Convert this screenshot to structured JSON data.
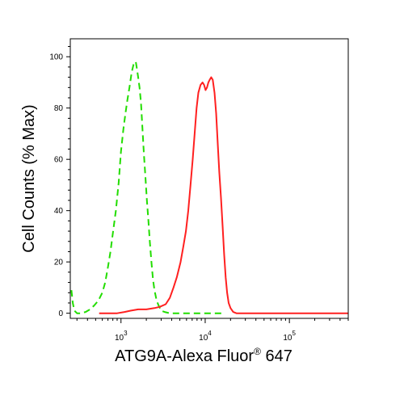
{
  "chart_data": {
    "type": "line",
    "title": "",
    "xlabel_main": "ATG9A-Alexa Fluor",
    "xlabel_sup": "®",
    "xlabel_tail": " 647",
    "ylabel": "Cell Counts (% Max)",
    "x_scale": "log",
    "xlim": [
      250,
      500000
    ],
    "ylim": [
      -2,
      107
    ],
    "x_ticks": [
      {
        "value": 1000,
        "base": "10",
        "exp": "3"
      },
      {
        "value": 10000,
        "base": "10",
        "exp": "4"
      },
      {
        "value": 100000,
        "base": "10",
        "exp": "5"
      }
    ],
    "y_ticks": [
      0,
      20,
      40,
      60,
      80,
      100
    ],
    "grid": false,
    "legend": "none",
    "series": [
      {
        "color": "#22dd00",
        "style": "dashed",
        "points": [
          [
            258,
            9
          ],
          [
            268,
            4
          ],
          [
            280,
            1
          ],
          [
            300,
            0
          ],
          [
            330,
            0
          ],
          [
            380,
            0.5
          ],
          [
            430,
            1.5
          ],
          [
            480,
            3
          ],
          [
            540,
            5
          ],
          [
            600,
            8
          ],
          [
            650,
            12
          ],
          [
            700,
            18
          ],
          [
            750,
            24
          ],
          [
            800,
            31
          ],
          [
            870,
            40
          ],
          [
            940,
            51
          ],
          [
            1000,
            63
          ],
          [
            1070,
            72
          ],
          [
            1130,
            78
          ],
          [
            1190,
            83
          ],
          [
            1260,
            88
          ],
          [
            1340,
            94
          ],
          [
            1410,
            97
          ],
          [
            1450,
            98
          ],
          [
            1500,
            98
          ],
          [
            1550,
            95
          ],
          [
            1600,
            92
          ],
          [
            1660,
            88
          ],
          [
            1730,
            82
          ],
          [
            1800,
            72
          ],
          [
            1870,
            62
          ],
          [
            1950,
            53
          ],
          [
            2030,
            44
          ],
          [
            2120,
            36
          ],
          [
            2200,
            28
          ],
          [
            2300,
            20
          ],
          [
            2400,
            13
          ],
          [
            2500,
            9
          ],
          [
            2650,
            5
          ],
          [
            2800,
            3
          ],
          [
            3000,
            1
          ],
          [
            3300,
            0.5
          ],
          [
            3800,
            0
          ],
          [
            4600,
            0
          ],
          [
            5700,
            0
          ],
          [
            7000,
            0
          ],
          [
            8600,
            0
          ],
          [
            11000,
            0
          ],
          [
            14000,
            0
          ],
          [
            16000,
            0
          ]
        ]
      },
      {
        "color": "#ff2020",
        "style": "solid",
        "points": [
          [
            550,
            0
          ],
          [
            900,
            0
          ],
          [
            1100,
            0.5
          ],
          [
            1300,
            1
          ],
          [
            1600,
            1.5
          ],
          [
            2000,
            1.5
          ],
          [
            2500,
            2
          ],
          [
            2900,
            2.5
          ],
          [
            3400,
            3.5
          ],
          [
            3800,
            6
          ],
          [
            4200,
            10
          ],
          [
            4600,
            14
          ],
          [
            5100,
            20
          ],
          [
            5500,
            26
          ],
          [
            5900,
            32
          ],
          [
            6300,
            40
          ],
          [
            6700,
            50
          ],
          [
            7100,
            60
          ],
          [
            7500,
            70
          ],
          [
            7900,
            80
          ],
          [
            8300,
            86
          ],
          [
            8800,
            89
          ],
          [
            9300,
            90
          ],
          [
            9700,
            89
          ],
          [
            10100,
            87
          ],
          [
            10500,
            88
          ],
          [
            10900,
            90
          ],
          [
            11300,
            91
          ],
          [
            11800,
            92
          ],
          [
            12300,
            91
          ],
          [
            12900,
            86
          ],
          [
            13500,
            78
          ],
          [
            14100,
            66
          ],
          [
            14700,
            55
          ],
          [
            15400,
            45
          ],
          [
            16100,
            34
          ],
          [
            16800,
            23
          ],
          [
            17500,
            14
          ],
          [
            18200,
            8
          ],
          [
            19000,
            4
          ],
          [
            20000,
            2
          ],
          [
            21500,
            0.5
          ],
          [
            23500,
            0
          ],
          [
            30000,
            0
          ],
          [
            60000,
            0
          ],
          [
            150000,
            0
          ],
          [
            400000,
            0
          ],
          [
            500000,
            0
          ]
        ]
      }
    ]
  }
}
